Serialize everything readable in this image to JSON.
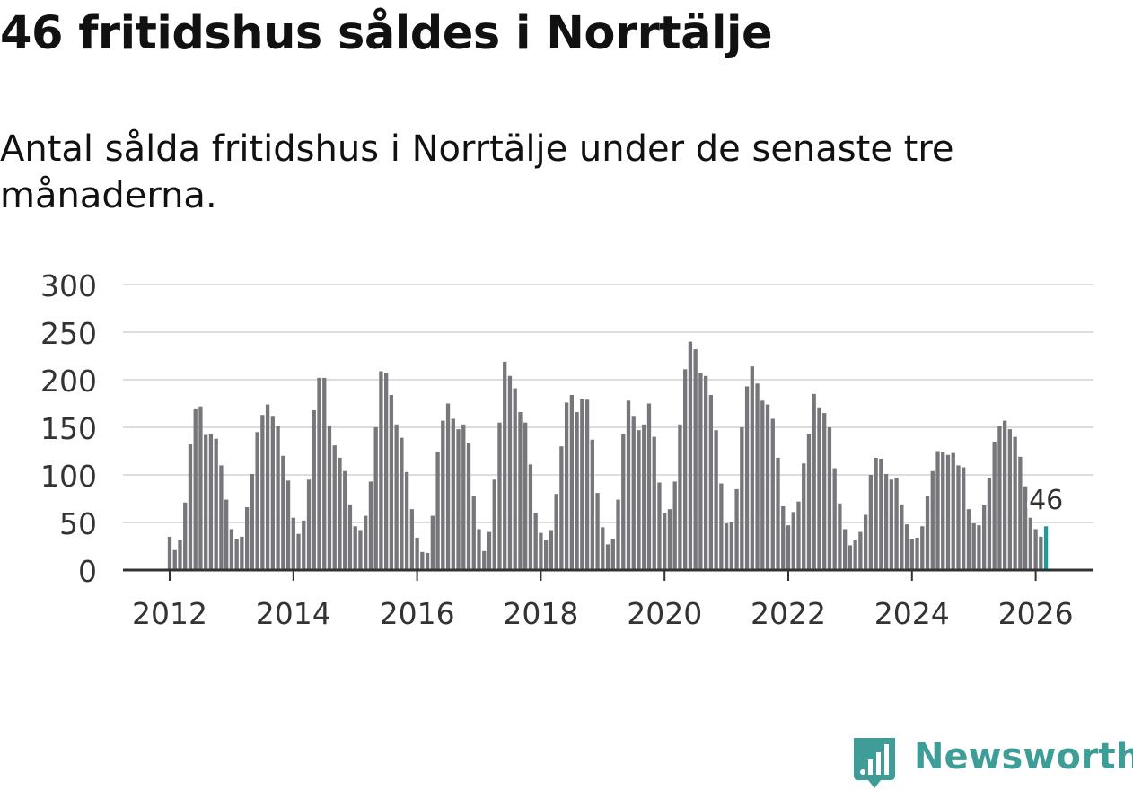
{
  "header": {
    "title": "46 fritidshus såldes i Norrtälje",
    "subtitle": "Antal sålda fritidshus i Norrtälje under de senaste tre månaderna."
  },
  "brand": {
    "name": "Newsworthy",
    "color": "#3f9d97"
  },
  "colors": {
    "bar": "#77767b",
    "highlight": "#1f9c98",
    "grid": "#dddddd",
    "axis": "#333333"
  },
  "chart_data": {
    "type": "bar",
    "title": "46 fritidshus såldes i Norrtälje",
    "subtitle": "Antal sålda fritidshus i Norrtälje under de senaste tre månaderna.",
    "xlabel": "",
    "ylabel": "",
    "ylim": [
      0,
      300
    ],
    "yticks": [
      0,
      50,
      100,
      150,
      200,
      250,
      300
    ],
    "xticks": [
      "2012",
      "2014",
      "2016",
      "2018",
      "2020",
      "2022",
      "2024",
      "2026"
    ],
    "grid": true,
    "start": "2012-01",
    "frequency": "monthly",
    "highlight_label": "46",
    "values": [
      35,
      21,
      32,
      71,
      132,
      169,
      172,
      142,
      143,
      138,
      110,
      74,
      43,
      33,
      35,
      66,
      101,
      145,
      163,
      174,
      162,
      151,
      120,
      94,
      55,
      38,
      52,
      95,
      168,
      202,
      202,
      152,
      131,
      118,
      104,
      69,
      46,
      42,
      57,
      93,
      150,
      209,
      207,
      184,
      153,
      139,
      103,
      64,
      34,
      19,
      18,
      57,
      124,
      157,
      175,
      159,
      148,
      153,
      133,
      78,
      43,
      20,
      40,
      95,
      155,
      219,
      204,
      191,
      166,
      155,
      111,
      60,
      39,
      32,
      42,
      80,
      130,
      176,
      184,
      166,
      180,
      179,
      137,
      81,
      45,
      27,
      33,
      74,
      143,
      178,
      162,
      147,
      153,
      175,
      140,
      92,
      60,
      64,
      93,
      153,
      211,
      240,
      232,
      207,
      204,
      184,
      147,
      91,
      49,
      50,
      85,
      150,
      193,
      214,
      196,
      178,
      174,
      159,
      118,
      67,
      47,
      61,
      72,
      112,
      143,
      185,
      171,
      165,
      150,
      107,
      70,
      43,
      26,
      32,
      40,
      58,
      100,
      118,
      117,
      101,
      95,
      97,
      69,
      48,
      33,
      34,
      46,
      78,
      104,
      125,
      124,
      121,
      123,
      110,
      108,
      64,
      49,
      47,
      68,
      97,
      135,
      151,
      157,
      148,
      140,
      119,
      88,
      55,
      43,
      35,
      46
    ]
  }
}
